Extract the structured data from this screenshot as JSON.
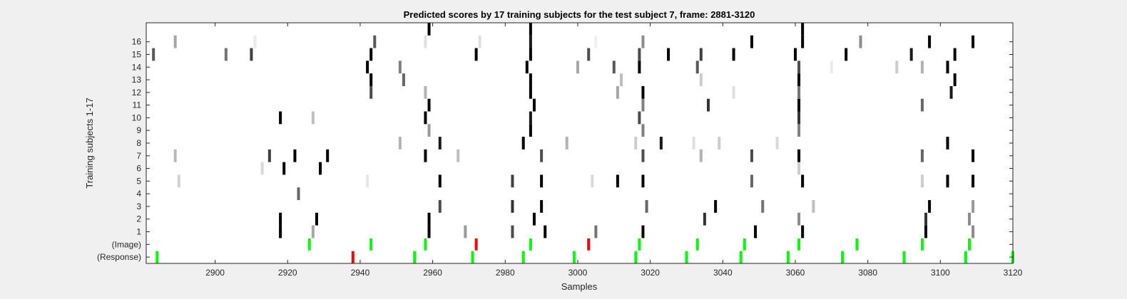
{
  "chart_data": {
    "type": "heatmap",
    "title": "Predicted scores by 17 training subjects for the test subject 7, frame: 2881-3120",
    "xlabel": "Samples",
    "ylabel": "Training subjects 1-17",
    "xlim": [
      2881,
      3120
    ],
    "x_ticks": [
      2900,
      2920,
      2940,
      2960,
      2980,
      3000,
      3020,
      3040,
      3060,
      3080,
      3100,
      3120
    ],
    "y_rows": [
      "(Response)",
      "(Image)",
      "1",
      "2",
      "3",
      "4",
      "5",
      "6",
      "7",
      "8",
      "9",
      "10",
      "11",
      "12",
      "13",
      "14",
      "15",
      "16",
      "17"
    ],
    "y_tick_labels": [
      "(Response)",
      "(Image)",
      "1",
      "2",
      "3",
      "4",
      "5",
      "6",
      "7",
      "8",
      "9",
      "10",
      "11",
      "12",
      "13",
      "14",
      "15",
      "16"
    ],
    "colors": {
      "correct": "#00ff00",
      "incorrect": "#ff0000",
      "background": "#ffffff"
    },
    "response": [
      {
        "x": 2884,
        "color": "green"
      },
      {
        "x": 2938,
        "color": "red"
      },
      {
        "x": 2955,
        "color": "green"
      },
      {
        "x": 2971,
        "color": "green"
      },
      {
        "x": 2985,
        "color": "green"
      },
      {
        "x": 2999,
        "color": "green"
      },
      {
        "x": 3016,
        "color": "green"
      },
      {
        "x": 3030,
        "color": "green"
      },
      {
        "x": 3045,
        "color": "green"
      },
      {
        "x": 3058,
        "color": "green"
      },
      {
        "x": 3073,
        "color": "green"
      },
      {
        "x": 3090,
        "color": "green"
      },
      {
        "x": 3107,
        "color": "green"
      },
      {
        "x": 3120,
        "color": "green"
      }
    ],
    "image": [
      {
        "x": 2926,
        "color": "green"
      },
      {
        "x": 2943,
        "color": "green"
      },
      {
        "x": 2958,
        "color": "green"
      },
      {
        "x": 2972,
        "color": "red"
      },
      {
        "x": 2987,
        "color": "green"
      },
      {
        "x": 3003,
        "color": "red"
      },
      {
        "x": 3017,
        "color": "green"
      },
      {
        "x": 3033,
        "color": "green"
      },
      {
        "x": 3046,
        "color": "green"
      },
      {
        "x": 3061,
        "color": "green"
      },
      {
        "x": 3077,
        "color": "green"
      },
      {
        "x": 3095,
        "color": "green"
      },
      {
        "x": 3108,
        "color": "green"
      }
    ],
    "scores": [
      {
        "subject": 1,
        "cells": [
          [
            2918,
            1.0
          ],
          [
            2927,
            0.35
          ],
          [
            2959,
            1.0
          ],
          [
            2969,
            0.4
          ],
          [
            2982,
            0.7
          ],
          [
            2991,
            1.0
          ],
          [
            3005,
            0.55
          ],
          [
            3018,
            1.0
          ],
          [
            3049,
            1.0
          ],
          [
            3062,
            1.0
          ],
          [
            3096,
            1.0
          ],
          [
            3109,
            0.45
          ]
        ]
      },
      {
        "subject": 2,
        "cells": [
          [
            2918,
            1.0
          ],
          [
            2928,
            1.0
          ],
          [
            2959,
            1.0
          ],
          [
            2988,
            1.0
          ],
          [
            3035,
            0.8
          ],
          [
            3061,
            0.45
          ],
          [
            3096,
            0.8
          ],
          [
            3108,
            0.45
          ]
        ]
      },
      {
        "subject": 3,
        "cells": [
          [
            2962,
            0.7
          ],
          [
            2982,
            0.8
          ],
          [
            2990,
            1.0
          ],
          [
            3019,
            0.6
          ],
          [
            3038,
            1.0
          ],
          [
            3051,
            0.55
          ],
          [
            3065,
            0.25
          ],
          [
            3097,
            1.0
          ],
          [
            3109,
            0.4
          ]
        ]
      },
      {
        "subject": 4,
        "cells": [
          [
            2923,
            0.6
          ]
        ]
      },
      {
        "subject": 5,
        "cells": [
          [
            2890,
            0.18
          ],
          [
            2942,
            0.1
          ],
          [
            2962,
            1.0
          ],
          [
            2982,
            0.75
          ],
          [
            2990,
            1.0
          ],
          [
            3004,
            0.15
          ],
          [
            3011,
            1.0
          ],
          [
            3018,
            1.0
          ],
          [
            3048,
            0.6
          ],
          [
            3062,
            1.0
          ],
          [
            3095,
            0.2
          ],
          [
            3102,
            1.0
          ],
          [
            3109,
            1.0
          ]
        ]
      },
      {
        "subject": 6,
        "cells": [
          [
            2913,
            0.15
          ],
          [
            2919,
            1.0
          ],
          [
            2929,
            1.0
          ],
          [
            3061,
            0.2
          ]
        ]
      },
      {
        "subject": 7,
        "cells": [
          [
            2889,
            0.28
          ],
          [
            2915,
            0.75
          ],
          [
            2922,
            1.0
          ],
          [
            2931,
            1.0
          ],
          [
            2958,
            1.0
          ],
          [
            2967,
            0.25
          ],
          [
            2990,
            0.7
          ],
          [
            3018,
            0.7
          ],
          [
            3034,
            0.3
          ],
          [
            3048,
            0.7
          ],
          [
            3061,
            1.0
          ],
          [
            3095,
            0.6
          ],
          [
            3109,
            1.0
          ]
        ]
      },
      {
        "subject": 8,
        "cells": [
          [
            2951,
            0.3
          ],
          [
            2962,
            0.9
          ],
          [
            2985,
            1.0
          ],
          [
            2997,
            0.3
          ],
          [
            3016,
            0.2
          ],
          [
            3023,
            0.9
          ],
          [
            3032,
            0.12
          ],
          [
            3039,
            0.2
          ],
          [
            3055,
            0.15
          ],
          [
            3102,
            1.0
          ]
        ]
      },
      {
        "subject": 9,
        "cells": [
          [
            2959,
            0.4
          ],
          [
            2987,
            1.0
          ],
          [
            3018,
            0.5
          ],
          [
            3061,
            0.5
          ]
        ]
      },
      {
        "subject": 10,
        "cells": [
          [
            2918,
            1.0
          ],
          [
            2927,
            0.25
          ],
          [
            2958,
            1.0
          ],
          [
            2987,
            0.9
          ],
          [
            3017,
            0.7
          ],
          [
            3061,
            0.8
          ]
        ]
      },
      {
        "subject": 11,
        "cells": [
          [
            2959,
            1.0
          ],
          [
            2988,
            1.0
          ],
          [
            3018,
            0.5
          ],
          [
            3036,
            0.8
          ],
          [
            3061,
            1.0
          ],
          [
            3095,
            0.6
          ]
        ]
      },
      {
        "subject": 12,
        "cells": [
          [
            2943,
            0.7
          ],
          [
            2958,
            0.3
          ],
          [
            2987,
            1.0
          ],
          [
            3011,
            0.35
          ],
          [
            3018,
            1.0
          ],
          [
            3043,
            0.12
          ],
          [
            3061,
            0.55
          ],
          [
            3103,
            0.9
          ]
        ]
      },
      {
        "subject": 13,
        "cells": [
          [
            2943,
            1.0
          ],
          [
            2952,
            0.6
          ],
          [
            2987,
            1.0
          ],
          [
            3012,
            0.25
          ],
          [
            3034,
            0.2
          ],
          [
            3061,
            1.0
          ],
          [
            3104,
            1.0
          ]
        ]
      },
      {
        "subject": 14,
        "cells": [
          [
            2942,
            1.0
          ],
          [
            2951,
            0.5
          ],
          [
            2986,
            1.0
          ],
          [
            3000,
            0.35
          ],
          [
            3010,
            0.65
          ],
          [
            3017,
            1.0
          ],
          [
            3033,
            0.65
          ],
          [
            3061,
            0.7
          ],
          [
            3070,
            0.08
          ],
          [
            3088,
            0.2
          ],
          [
            3095,
            0.3
          ],
          [
            3102,
            1.0
          ]
        ]
      },
      {
        "subject": 15,
        "cells": [
          [
            2883,
            0.65
          ],
          [
            2903,
            0.55
          ],
          [
            2910,
            0.75
          ],
          [
            2943,
            1.0
          ],
          [
            2972,
            1.0
          ],
          [
            2987,
            1.0
          ],
          [
            3003,
            0.7
          ],
          [
            3017,
            0.7
          ],
          [
            3025,
            1.0
          ],
          [
            3034,
            0.75
          ],
          [
            3043,
            1.0
          ],
          [
            3060,
            1.0
          ],
          [
            3074,
            1.0
          ],
          [
            3092,
            0.9
          ],
          [
            3104,
            1.0
          ]
        ]
      },
      {
        "subject": 16,
        "cells": [
          [
            2889,
            0.35
          ],
          [
            2911,
            0.08
          ],
          [
            2944,
            0.65
          ],
          [
            2958,
            0.12
          ],
          [
            2973,
            0.12
          ],
          [
            2987,
            0.9
          ],
          [
            3005,
            0.06
          ],
          [
            3018,
            0.45
          ],
          [
            3048,
            1.0
          ],
          [
            3062,
            1.0
          ],
          [
            3078,
            0.45
          ],
          [
            3097,
            1.0
          ],
          [
            3109,
            1.0
          ]
        ]
      },
      {
        "subject": 17,
        "cells": [
          [
            2959,
            1.0
          ],
          [
            2987,
            1.0
          ],
          [
            3062,
            1.0
          ]
        ]
      }
    ]
  }
}
